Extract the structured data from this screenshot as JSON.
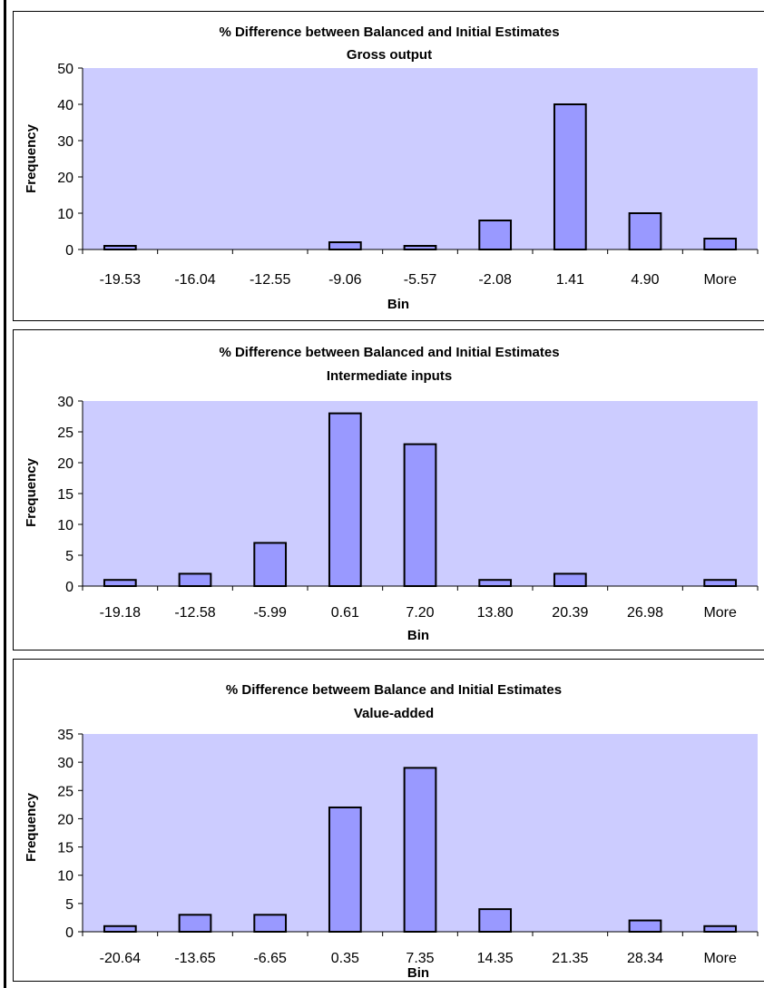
{
  "chart_data": [
    {
      "type": "bar",
      "title": "% Difference between Balanced and Initial Estimates",
      "subtitle": "Gross output",
      "xlabel": "Bin",
      "ylabel": "Frequency",
      "categories": [
        "-19.53",
        "-16.04",
        "-12.55",
        "-9.06",
        "-5.57",
        "-2.08",
        "1.41",
        "4.90",
        "More"
      ],
      "values": [
        1,
        0,
        0,
        2,
        1,
        8,
        40,
        10,
        3
      ],
      "ylim": [
        0,
        50
      ],
      "yticks": [
        "0",
        "10",
        "20",
        "30",
        "40",
        "50"
      ],
      "grid": false,
      "legend": false
    },
    {
      "type": "bar",
      "title": "% Difference between Balanced and Initial Estimates",
      "subtitle": "Intermediate inputs",
      "xlabel": "Bin",
      "ylabel": "Frequency",
      "categories": [
        "-19.18",
        "-12.58",
        "-5.99",
        "0.61",
        "7.20",
        "13.80",
        "20.39",
        "26.98",
        "More"
      ],
      "values": [
        1,
        2,
        7,
        28,
        23,
        1,
        2,
        0,
        1
      ],
      "ylim": [
        0,
        30
      ],
      "yticks": [
        "0",
        "5",
        "10",
        "15",
        "20",
        "25",
        "30"
      ],
      "grid": false,
      "legend": false
    },
    {
      "type": "bar",
      "title": "% Difference betweem Balance and Initial Estimates",
      "subtitle": "Value-added",
      "xlabel": "Bin",
      "ylabel": "Frequency",
      "categories": [
        "-20.64",
        "-13.65",
        "-6.65",
        "0.35",
        "7.35",
        "14.35",
        "21.35",
        "28.34",
        "More"
      ],
      "values": [
        1,
        3,
        3,
        22,
        29,
        4,
        0,
        2,
        1
      ],
      "ylim": [
        0,
        35
      ],
      "yticks": [
        "0",
        "5",
        "10",
        "15",
        "20",
        "25",
        "30",
        "35"
      ],
      "grid": false,
      "legend": false
    }
  ],
  "colors": {
    "plot_background": "#ccccff",
    "bar_fill": "#9999ff",
    "bar_stroke": "#000000",
    "axis": "#000000"
  }
}
